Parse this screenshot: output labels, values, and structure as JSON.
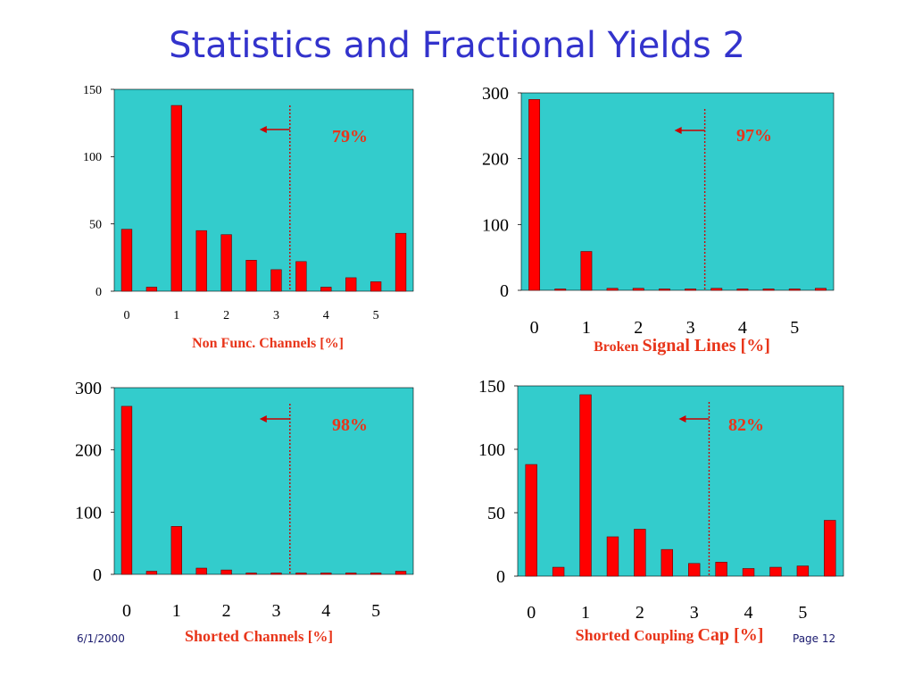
{
  "slide": {
    "title": "Statistics and Fractional Yields 2",
    "date": "6/1/2000",
    "page": "Page 12"
  },
  "colors": {
    "plot_bg": "#33cccc",
    "bar": "#ff0000",
    "marker": "#cc0000",
    "percent": "#e8351a",
    "title": "#3333cc"
  },
  "chart_data": [
    {
      "type": "bar",
      "xlabel_parts": [
        {
          "text": "Non Func. Channels [%]",
          "style": "cap-tiny"
        }
      ],
      "x_ticks": [
        "0",
        "1",
        "2",
        "3",
        "4",
        "5"
      ],
      "y_ticks": [
        "0",
        "50",
        "100",
        "150"
      ],
      "ylim": [
        0,
        150
      ],
      "values": [
        46,
        3,
        138,
        45,
        42,
        23,
        16,
        22,
        3,
        10,
        7,
        43
      ],
      "annotation": "79%",
      "threshold_x": 3
    },
    {
      "type": "bar",
      "xlabel_parts": [
        {
          "text": "Broken ",
          "style": "cap-tiny"
        },
        {
          "text": "Signal Lines [%]",
          "style": "cap-big"
        }
      ],
      "x_ticks": [
        "0",
        "1",
        "2",
        "3",
        "4",
        "5"
      ],
      "y_ticks": [
        "0",
        "100",
        "200",
        "300"
      ],
      "ylim": [
        0,
        300
      ],
      "values": [
        290,
        1,
        59,
        3,
        3,
        2,
        1,
        3,
        1,
        1,
        1,
        3
      ],
      "annotation": "97%",
      "threshold_x": 3
    },
    {
      "type": "bar",
      "xlabel_parts": [
        {
          "text": "Shorted ",
          "style": "cap-mid"
        },
        {
          "text": "Channels [%]",
          "style": "cap-small"
        }
      ],
      "x_ticks": [
        "0",
        "1",
        "2",
        "3",
        "4",
        "5"
      ],
      "y_ticks": [
        "0",
        "100",
        "200",
        "300"
      ],
      "ylim": [
        0,
        300
      ],
      "values": [
        270,
        5,
        77,
        10,
        7,
        1,
        1,
        1,
        2,
        1,
        0,
        5
      ],
      "annotation": "98%",
      "threshold_x": 3
    },
    {
      "type": "bar",
      "xlabel_parts": [
        {
          "text": "Shorted ",
          "style": "cap-mid"
        },
        {
          "text": "Coupling ",
          "style": "cap-small"
        },
        {
          "text": "Cap [%]",
          "style": "cap-big"
        }
      ],
      "x_ticks": [
        "0",
        "1",
        "2",
        "3",
        "4",
        "5"
      ],
      "y_ticks": [
        "0",
        "50",
        "100",
        "150"
      ],
      "ylim": [
        0,
        150
      ],
      "values": [
        88,
        7,
        143,
        31,
        37,
        21,
        10,
        11,
        6,
        7,
        8,
        44
      ],
      "annotation": "82%",
      "threshold_x": 3
    }
  ]
}
